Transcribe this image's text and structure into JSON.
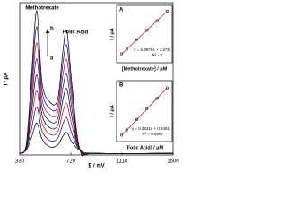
{
  "chart_data": [
    {
      "type": "line",
      "xlabel": "E / mV",
      "ylabel": "I / μA",
      "x": [
        330,
        380,
        420,
        460,
        500,
        560,
        620,
        660,
        690,
        730,
        790,
        900,
        1500
      ],
      "xlim": [
        330,
        1500
      ],
      "xticks": [
        330,
        720,
        1110,
        1500
      ],
      "ylim": [
        0,
        95
      ],
      "annotations": [
        "Methotrexate",
        "Folic Acid",
        "h",
        "a"
      ],
      "series": [
        {
          "color": "#111111",
          "values": [
            1,
            3,
            11,
            20,
            10,
            5,
            6.3,
            11.9,
            14,
            7.7,
            3,
            1,
            1
          ]
        },
        {
          "color": "#1a1aa0",
          "values": [
            1,
            3.5,
            16.5,
            30,
            15,
            9,
            10.4,
            19.6,
            23,
            12.7,
            3,
            1,
            1
          ]
        },
        {
          "color": "#d01818",
          "values": [
            1,
            4,
            22,
            40,
            20,
            13,
            14.4,
            27.2,
            32,
            17.6,
            3,
            1,
            1
          ]
        },
        {
          "color": "#111111",
          "values": [
            1,
            4.5,
            27.5,
            50,
            25,
            17,
            18.5,
            34.9,
            41,
            22.6,
            3,
            1,
            1
          ]
        },
        {
          "color": "#1a1aa0",
          "values": [
            1,
            5,
            33,
            60,
            30,
            21,
            22.5,
            42.5,
            50,
            27.5,
            3,
            1,
            1
          ]
        },
        {
          "color": "#d01818",
          "values": [
            1,
            5.5,
            38.5,
            70,
            35,
            25,
            26.6,
            50.2,
            59,
            32.5,
            3,
            1,
            1
          ]
        },
        {
          "color": "#1a1aa0",
          "values": [
            1,
            6,
            44,
            80,
            40,
            29,
            30.6,
            57.8,
            68,
            37.4,
            3,
            1,
            1
          ]
        },
        {
          "color": "#111111",
          "values": [
            1,
            6.5,
            49.5,
            90,
            45,
            33,
            34.7,
            65.5,
            77,
            42.4,
            3,
            1,
            1
          ]
        }
      ]
    },
    {
      "type": "scatter",
      "panel": "A",
      "xlabel": "[Methotrexate] / μM",
      "ylabel": "I / μA",
      "x": [
        5,
        10,
        20,
        30,
        40,
        50
      ],
      "values": [
        3.7,
        5.65,
        9.6,
        13.6,
        17.6,
        21.6
      ],
      "xlim": [
        0,
        55
      ],
      "ylim": [
        0,
        24
      ],
      "color": "#1a1aa0",
      "line_color": "#d01818",
      "trendline": {
        "slope": 0.3978,
        "intercept": 1.675
      },
      "equation": "y = 0.3978x + 1.675",
      "r2": "R² = 1"
    },
    {
      "type": "scatter",
      "panel": "B",
      "xlabel": "[Folic Acid] / μM",
      "ylabel": "I / μA",
      "x": [
        5,
        10,
        20,
        30,
        40,
        50
      ],
      "values": [
        2.2,
        4.0,
        7.6,
        11.3,
        14.9,
        18.5
      ],
      "xlim": [
        0,
        55
      ],
      "ylim": [
        0,
        21
      ],
      "color": "#1a1aa0",
      "line_color": "#d01818",
      "trendline": {
        "slope": 0.3631,
        "intercept": 0.3481
      },
      "equation": "y = 0.3631x + 0.3481",
      "r2": "R² = 0.9997"
    }
  ]
}
